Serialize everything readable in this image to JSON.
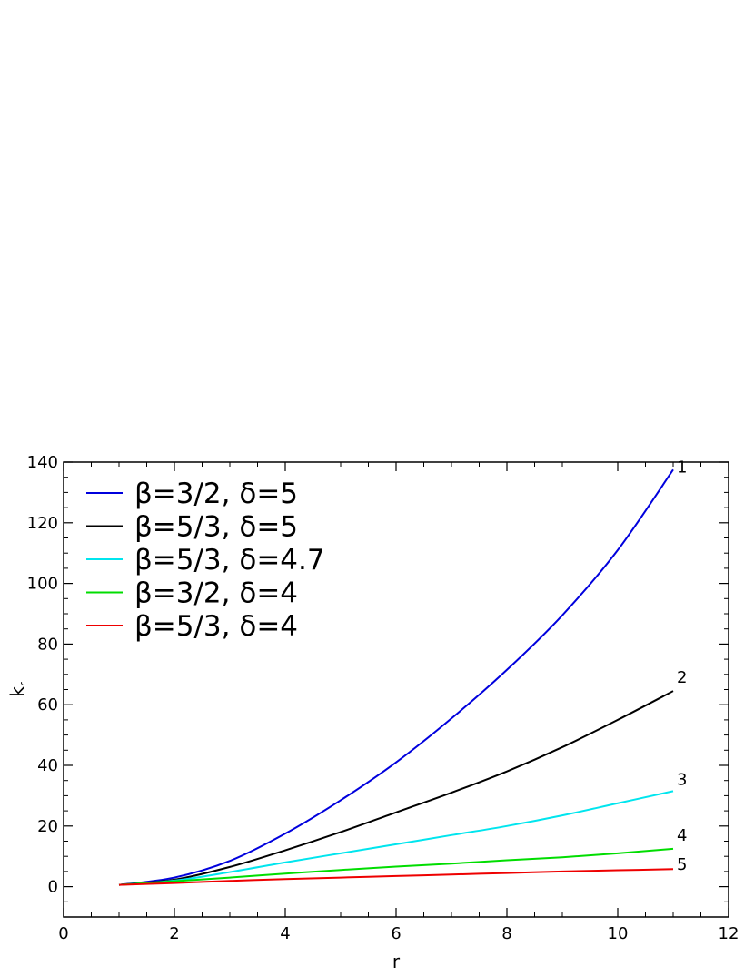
{
  "chart_data": {
    "type": "line",
    "title": "",
    "xlabel": "r",
    "ylabel": "k",
    "ylabel_subscript": "r",
    "xlim": [
      0,
      12
    ],
    "ylim": [
      -10,
      140
    ],
    "xticks": [
      0,
      2,
      4,
      6,
      8,
      10,
      12
    ],
    "yticks": [
      0,
      20,
      40,
      60,
      80,
      100,
      120,
      140
    ],
    "grid": false,
    "legend_position": "top-left",
    "series": [
      {
        "name": "β=3/2, δ=5",
        "label": "1",
        "color": "#0000dd",
        "x": [
          1,
          2,
          3,
          4,
          5,
          6,
          7,
          8,
          9,
          10,
          11
        ],
        "y": [
          0.6,
          3.0,
          8.5,
          17.5,
          28.5,
          41.0,
          55.5,
          71.5,
          89.5,
          111.0,
          137.5
        ]
      },
      {
        "name": "β=5/3, δ=5",
        "label": "2",
        "color": "#000000",
        "x": [
          1,
          2,
          3,
          4,
          5,
          6,
          7,
          8,
          9,
          10,
          11
        ],
        "y": [
          0.6,
          2.3,
          6.5,
          12.0,
          18.0,
          24.5,
          31.0,
          38.0,
          46.0,
          55.0,
          64.5
        ]
      },
      {
        "name": "β=5/3, δ=4.7",
        "label": "3",
        "color": "#00e5ee",
        "x": [
          1,
          2,
          3,
          4,
          5,
          6,
          7,
          8,
          9,
          10,
          11
        ],
        "y": [
          0.6,
          2.0,
          4.8,
          8.0,
          11.0,
          14.0,
          17.0,
          20.0,
          23.5,
          27.5,
          31.5
        ]
      },
      {
        "name": "β=3/2, δ=4",
        "label": "4",
        "color": "#00dd00",
        "x": [
          1,
          2,
          3,
          4,
          5,
          6,
          7,
          8,
          9,
          10,
          11
        ],
        "y": [
          0.6,
          1.8,
          3.0,
          4.3,
          5.5,
          6.6,
          7.6,
          8.7,
          9.7,
          11.0,
          12.5
        ]
      },
      {
        "name": "β=5/3, δ=4",
        "label": "5",
        "color": "#ee0000",
        "x": [
          1,
          2,
          3,
          4,
          5,
          6,
          7,
          8,
          9,
          10,
          11
        ],
        "y": [
          0.6,
          1.2,
          1.9,
          2.5,
          3.0,
          3.5,
          4.0,
          4.5,
          5.0,
          5.4,
          5.8
        ]
      }
    ]
  }
}
